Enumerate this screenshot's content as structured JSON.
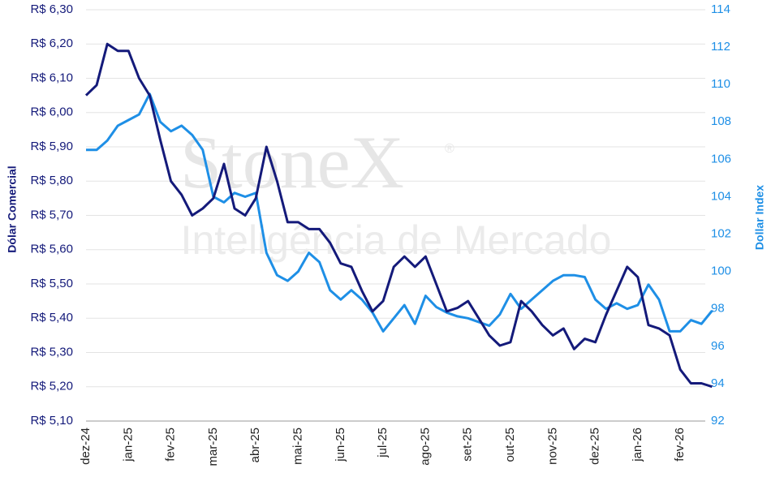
{
  "chart_data": {
    "type": "line",
    "watermark": {
      "brand": "StoneX",
      "mark": "®",
      "tagline": "Inteligência de Mercado"
    },
    "ylabel": "Dólar Comercial",
    "y2label": "Dollar Index",
    "categories": [
      "dez-24",
      null,
      null,
      null,
      "jan-25",
      null,
      null,
      null,
      "fev-25",
      null,
      null,
      null,
      "mar-25",
      null,
      null,
      null,
      "abr-25",
      null,
      null,
      null,
      "mai-25",
      null,
      null,
      null,
      "jun-25",
      null,
      null,
      null,
      "jul-25",
      null,
      null,
      null,
      "ago-25",
      null,
      null,
      null,
      "set-25",
      null,
      null,
      null,
      "out-25",
      null,
      null,
      null,
      "nov-25",
      null,
      null,
      null,
      "dez-25",
      null,
      null,
      null,
      "jan-26",
      null,
      null,
      null,
      "fev-26",
      null,
      null,
      null
    ],
    "series": [
      {
        "name": "Dólar Comercial",
        "color": "#141a7a",
        "values": [
          6.05,
          6.08,
          6.2,
          6.18,
          6.18,
          6.1,
          6.05,
          5.92,
          5.8,
          5.76,
          5.7,
          5.72,
          5.75,
          5.85,
          5.72,
          5.7,
          5.75,
          5.9,
          5.8,
          5.68,
          5.68,
          5.66,
          5.66,
          5.62,
          5.56,
          5.55,
          5.48,
          5.42,
          5.45,
          5.55,
          5.58,
          5.55,
          5.58,
          5.5,
          5.42,
          5.43,
          5.45,
          5.4,
          5.35,
          5.32,
          5.33,
          5.45,
          5.42,
          5.38,
          5.35,
          5.37,
          5.31,
          5.34,
          5.33,
          5.41,
          5.48,
          5.55,
          5.52,
          5.38,
          5.37,
          5.35,
          5.25,
          5.21,
          5.21,
          5.2
        ]
      },
      {
        "name": "Dollar Index",
        "color": "#1e8fe6",
        "axis": "y2",
        "values": [
          106.5,
          106.5,
          107.0,
          107.8,
          108.1,
          108.4,
          109.5,
          108.0,
          107.5,
          107.8,
          107.3,
          106.5,
          104.0,
          103.7,
          104.2,
          104.0,
          104.2,
          101.0,
          99.8,
          99.5,
          100.0,
          101.0,
          100.5,
          99.0,
          98.5,
          99.0,
          98.5,
          97.8,
          96.8,
          97.5,
          98.2,
          97.2,
          98.7,
          98.1,
          97.8,
          97.6,
          97.5,
          97.3,
          97.1,
          97.7,
          98.8,
          98.0,
          98.5,
          99.0,
          99.5,
          99.8,
          99.8,
          99.7,
          98.5,
          98.0,
          98.3,
          98.0,
          98.2,
          99.3,
          98.5,
          96.8,
          96.8,
          97.4,
          97.2,
          97.9
        ]
      }
    ],
    "ylim": [
      5.1,
      6.3
    ],
    "yticks": [
      {
        "value": 5.1,
        "label": "R$ 5,10"
      },
      {
        "value": 5.2,
        "label": "R$ 5,20"
      },
      {
        "value": 5.3,
        "label": "R$ 5,30"
      },
      {
        "value": 5.4,
        "label": "R$ 5,40"
      },
      {
        "value": 5.5,
        "label": "R$ 5,50"
      },
      {
        "value": 5.6,
        "label": "R$ 5,60"
      },
      {
        "value": 5.7,
        "label": "R$ 5,70"
      },
      {
        "value": 5.8,
        "label": "R$ 5,80"
      },
      {
        "value": 5.9,
        "label": "R$ 5,90"
      },
      {
        "value": 6.0,
        "label": "R$ 6,00"
      },
      {
        "value": 6.1,
        "label": "R$ 6,10"
      },
      {
        "value": 6.2,
        "label": "R$ 6,20"
      },
      {
        "value": 6.3,
        "label": "R$ 6,30"
      }
    ],
    "y2lim": [
      92,
      114
    ],
    "y2ticks": [
      92,
      94,
      96,
      98,
      100,
      102,
      104,
      106,
      108,
      110,
      112,
      114
    ],
    "grid": true
  }
}
